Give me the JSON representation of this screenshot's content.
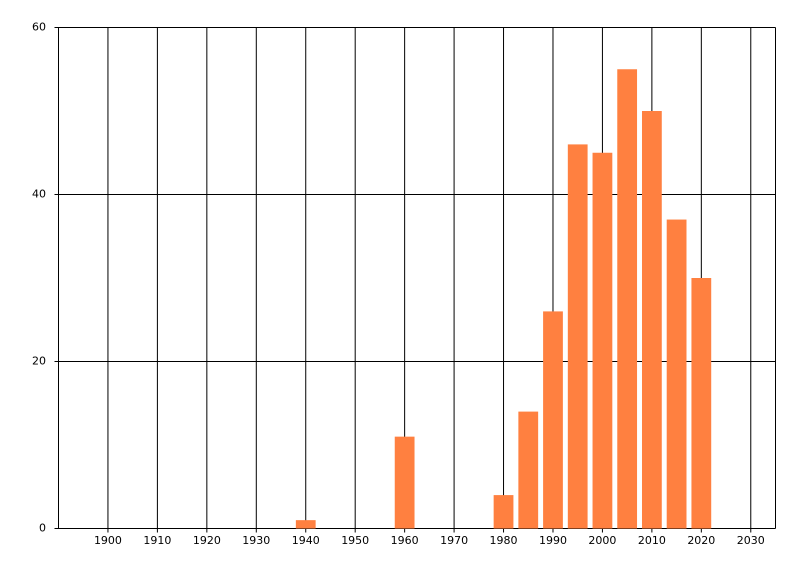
{
  "chart_data": {
    "type": "bar",
    "x": [
      1940,
      1960,
      1980,
      1985,
      1990,
      1995,
      2000,
      2005,
      2010,
      2015,
      2020
    ],
    "values": [
      1,
      11,
      4,
      14,
      26,
      46,
      45,
      55,
      50,
      37,
      30
    ],
    "color": "#ff8040",
    "xlim": [
      1890,
      2035
    ],
    "xticks": [
      1900,
      1910,
      1920,
      1930,
      1940,
      1950,
      1960,
      1970,
      1980,
      1990,
      2000,
      2010,
      2020,
      2030
    ],
    "ylim": [
      0,
      60
    ],
    "yticks": [
      0,
      20,
      40,
      60
    ],
    "grid": true
  }
}
